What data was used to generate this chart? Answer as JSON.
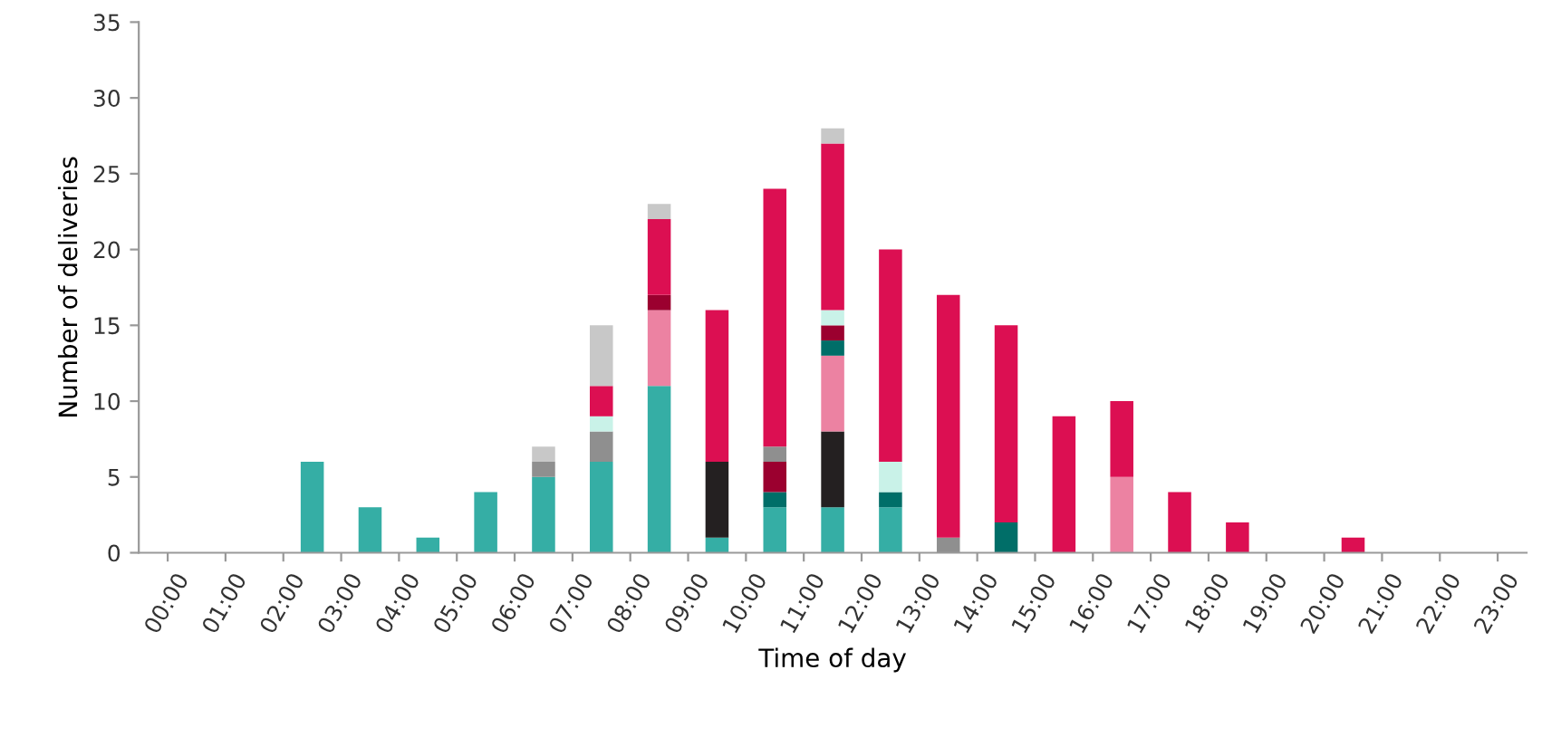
{
  "chart_data": {
    "type": "bar",
    "stacked": true,
    "xlabel": "Time of day",
    "ylabel": "Number of deliveries",
    "categories": [
      "00:00",
      "01:00",
      "02:00",
      "03:00",
      "04:00",
      "05:00",
      "06:00",
      "07:00",
      "08:00",
      "09:00",
      "10:00",
      "11:00",
      "12:00",
      "13:00",
      "14:00",
      "15:00",
      "16:00",
      "17:00",
      "18:00",
      "19:00",
      "20:00",
      "21:00",
      "22:00",
      "23:00"
    ],
    "series": [
      {
        "color": "#35aea5",
        "values": [
          0,
          0,
          6,
          3,
          1,
          4,
          5,
          6,
          11,
          1,
          3,
          3,
          3,
          0,
          0,
          0,
          0,
          0,
          0,
          0,
          0,
          0,
          0,
          0
        ]
      },
      {
        "color": "#242021",
        "values": [
          0,
          0,
          0,
          0,
          0,
          0,
          0,
          0,
          0,
          5,
          0,
          5,
          0,
          0,
          0,
          0,
          0,
          0,
          0,
          0,
          0,
          0,
          0,
          0
        ]
      },
      {
        "color": "#ec82a2",
        "values": [
          0,
          0,
          0,
          0,
          0,
          0,
          0,
          0,
          5,
          0,
          0,
          5,
          0,
          0,
          0,
          0,
          5,
          0,
          0,
          0,
          0,
          0,
          0,
          0
        ]
      },
      {
        "color": "#006e68",
        "values": [
          0,
          0,
          0,
          0,
          0,
          0,
          0,
          0,
          0,
          0,
          1,
          1,
          1,
          0,
          2,
          0,
          0,
          0,
          0,
          0,
          0,
          0,
          0,
          0
        ]
      },
      {
        "color": "#9b002f",
        "values": [
          0,
          0,
          0,
          0,
          0,
          0,
          0,
          0,
          1,
          0,
          2,
          1,
          0,
          0,
          0,
          0,
          0,
          0,
          0,
          0,
          0,
          0,
          0,
          0
        ]
      },
      {
        "color": "#8f8f8f",
        "values": [
          0,
          0,
          0,
          0,
          0,
          0,
          1,
          2,
          0,
          0,
          1,
          0,
          0,
          1,
          0,
          0,
          0,
          0,
          0,
          0,
          0,
          0,
          0,
          0
        ]
      },
      {
        "color": "#c9f2e8",
        "values": [
          0,
          0,
          0,
          0,
          0,
          0,
          0,
          1,
          0,
          0,
          0,
          1,
          2,
          0,
          0,
          0,
          0,
          0,
          0,
          0,
          0,
          0,
          0,
          0
        ]
      },
      {
        "color": "#dc0f52",
        "values": [
          0,
          0,
          0,
          0,
          0,
          0,
          0,
          2,
          5,
          10,
          17,
          11,
          14,
          16,
          13,
          9,
          5,
          4,
          2,
          0,
          1,
          0,
          0,
          0
        ]
      },
      {
        "color": "#c8c8c8",
        "values": [
          0,
          0,
          0,
          0,
          0,
          0,
          1,
          4,
          1,
          0,
          0,
          1,
          0,
          0,
          0,
          0,
          0,
          0,
          0,
          0,
          0,
          0,
          0,
          0
        ]
      }
    ],
    "ylim": [
      0,
      35
    ],
    "yticks": [
      0,
      5,
      10,
      15,
      20,
      25,
      30,
      35
    ],
    "grid": false,
    "legend": false
  }
}
